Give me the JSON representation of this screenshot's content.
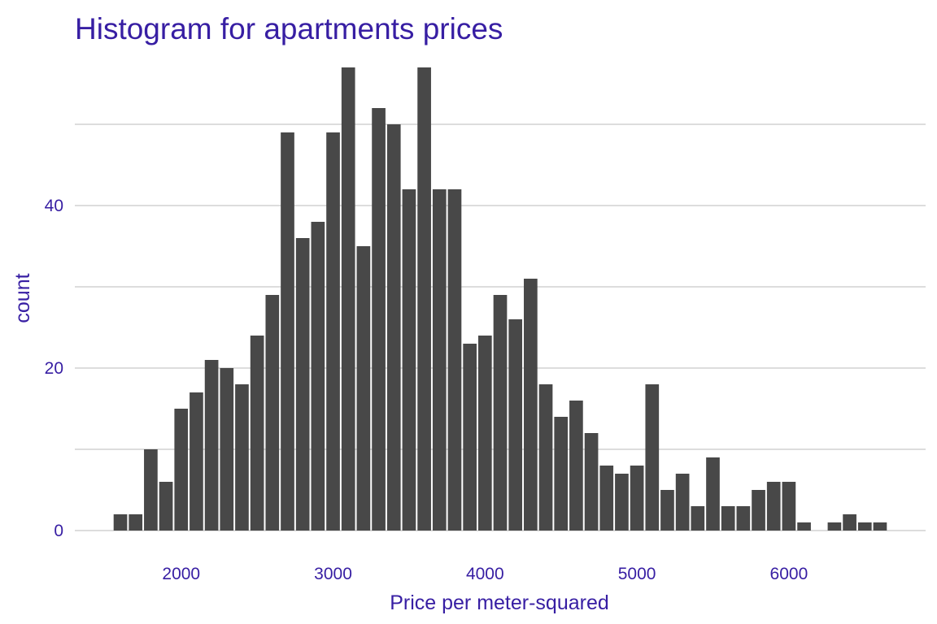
{
  "chart_data": {
    "type": "bar",
    "title": "Histogram for apartments prices",
    "xlabel": "Price per meter-squared",
    "ylabel": "count",
    "x_ticks": [
      2000,
      3000,
      4000,
      5000,
      6000
    ],
    "y_ticks": [
      0,
      20,
      40
    ],
    "xlim": [
      1300,
      6900
    ],
    "ylim": [
      0,
      57
    ],
    "grid": "horizontal",
    "legend": "none",
    "bin_width": 100,
    "bins": [
      1600,
      1700,
      1800,
      1900,
      2000,
      2100,
      2200,
      2300,
      2400,
      2500,
      2600,
      2700,
      2800,
      2900,
      3000,
      3100,
      3200,
      3300,
      3400,
      3500,
      3600,
      3700,
      3800,
      3900,
      4000,
      4100,
      4200,
      4300,
      4400,
      4500,
      4600,
      4700,
      4800,
      4900,
      5000,
      5100,
      5200,
      5300,
      5400,
      5500,
      5600,
      5700,
      5800,
      5900,
      6000,
      6100,
      6200,
      6300,
      6400,
      6500,
      6600
    ],
    "values": [
      2,
      2,
      10,
      6,
      15,
      17,
      21,
      20,
      18,
      24,
      29,
      49,
      36,
      38,
      49,
      57,
      35,
      52,
      50,
      42,
      57,
      42,
      42,
      23,
      24,
      29,
      26,
      31,
      18,
      14,
      16,
      12,
      8,
      7,
      8,
      18,
      5,
      7,
      3,
      9,
      3,
      3,
      5,
      6,
      6,
      1,
      0,
      1,
      2,
      1,
      1
    ]
  },
  "colors": {
    "bar": "#484848",
    "text": "#371ea3",
    "grid": "#dddddd"
  }
}
